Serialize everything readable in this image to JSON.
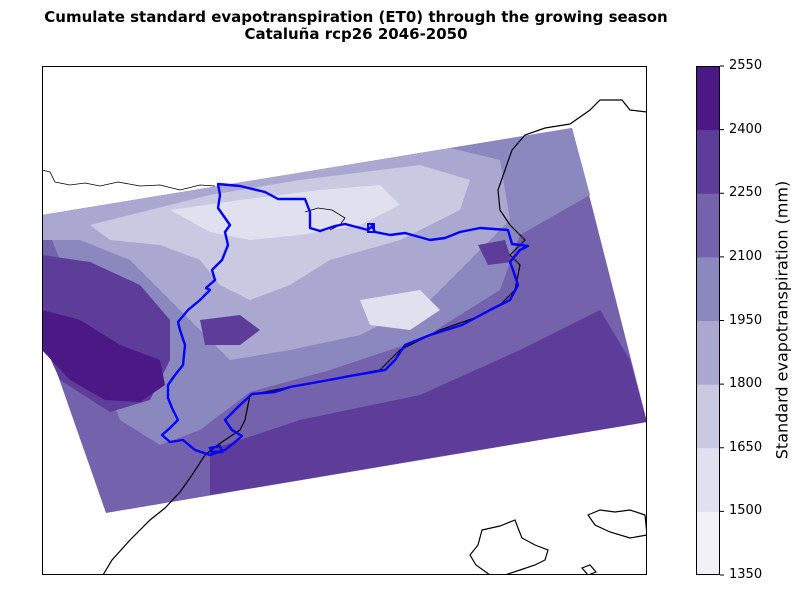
{
  "title": {
    "line1": "Cumulate standard evapotranspiration (ET0) through the growing season",
    "line2": "Cataluña rcp26 2046-2050"
  },
  "colorbar": {
    "label": "Standard evapotranspiration (mm)",
    "ticks": [
      "1350",
      "1500",
      "1650",
      "1800",
      "1950",
      "2100",
      "2250",
      "2400",
      "2550"
    ],
    "band_colors": [
      "#f2f1f8",
      "#e1e0ef",
      "#c9c9e2",
      "#aaa8d1",
      "#8b88c0",
      "#7462ac",
      "#5e3c99",
      "#4b1886"
    ]
  },
  "map": {
    "region_outline_color": "#0000ff",
    "coastline_color": "#000000"
  }
}
